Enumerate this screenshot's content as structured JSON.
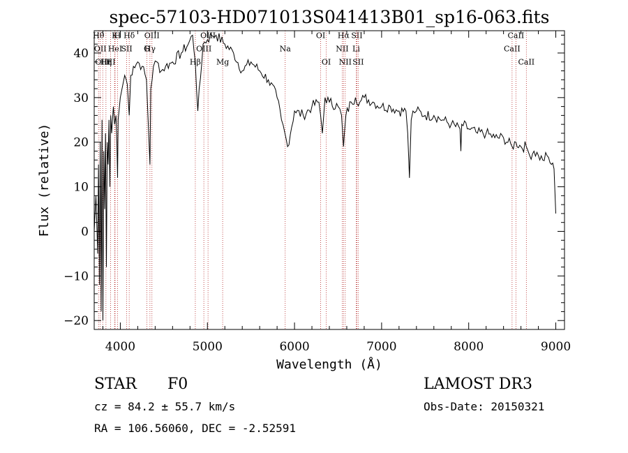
{
  "chart_data": {
    "type": "line",
    "title": "spec-57103-HD071013S041413B01_sp16-063.fits",
    "xlabel": "Wavelength (Å)",
    "ylabel": "Flux (relative)",
    "xlim": [
      3700,
      9100
    ],
    "ylim": [
      -22,
      45
    ],
    "x_ticks": [
      4000,
      5000,
      6000,
      7000,
      8000,
      9000
    ],
    "y_ticks": [
      -20,
      -10,
      0,
      10,
      20,
      30,
      40
    ],
    "grid": false,
    "line_color": "#000000",
    "marker_color": "#b22222",
    "spectrum": {
      "x": [
        3700,
        3720,
        3740,
        3750,
        3760,
        3770,
        3780,
        3790,
        3800,
        3810,
        3820,
        3830,
        3840,
        3850,
        3860,
        3870,
        3880,
        3890,
        3900,
        3910,
        3920,
        3935,
        3950,
        3960,
        3968,
        3975,
        3990,
        4000,
        4020,
        4050,
        4080,
        4102,
        4120,
        4150,
        4200,
        4250,
        4300,
        4330,
        4340,
        4350,
        4380,
        4420,
        4470,
        4520,
        4600,
        4700,
        4780,
        4830,
        4861,
        4890,
        4950,
        5000,
        5050,
        5100,
        5200,
        5300,
        5400,
        5500,
        5600,
        5700,
        5800,
        5850,
        5890,
        5920,
        6000,
        6100,
        6200,
        6280,
        6300,
        6320,
        6350,
        6400,
        6500,
        6540,
        6563,
        6590,
        6650,
        6700,
        6750,
        6800,
        6900,
        7000,
        7100,
        7200,
        7280,
        7300,
        7320,
        7340,
        7360,
        7400,
        7500,
        7600,
        7700,
        7800,
        7900,
        7910,
        7920,
        8000,
        8100,
        8200,
        8300,
        8400,
        8498,
        8542,
        8600,
        8662,
        8700,
        8750,
        8800,
        8850,
        8900,
        8950,
        8980,
        9000
      ],
      "y": [
        0,
        8,
        -5,
        15,
        -12,
        20,
        -18,
        25,
        -20,
        18,
        5,
        22,
        -8,
        20,
        15,
        25,
        10,
        26,
        22,
        25,
        28,
        24,
        26,
        20,
        12,
        25,
        28,
        30,
        32,
        35,
        33,
        26,
        35,
        37,
        38,
        37,
        34,
        20,
        15,
        32,
        37,
        38,
        36,
        37,
        38,
        40,
        42,
        44,
        38,
        27,
        42,
        43,
        44,
        44,
        42,
        40,
        36,
        38,
        36,
        34,
        30,
        25,
        22,
        19,
        27,
        26,
        28,
        29,
        26,
        22,
        30,
        29,
        28,
        26,
        19,
        26,
        29,
        30,
        29,
        30,
        29,
        28,
        28,
        27,
        27,
        22,
        12,
        25,
        27,
        27,
        26,
        26,
        25,
        24,
        23,
        18,
        24,
        23,
        22,
        22,
        21,
        21,
        19,
        20,
        19,
        19,
        17,
        18,
        17,
        16,
        17,
        15,
        14,
        4
      ]
    },
    "line_markers": [
      {
        "x": 3750,
        "y_anchor": 44,
        "label": "Hθ"
      },
      {
        "x": 3770,
        "y_anchor": 41,
        "label": "OII"
      },
      {
        "x": 3798,
        "y_anchor": 38,
        "label": "OIII"
      },
      {
        "x": 3835,
        "y_anchor": 38,
        "label": "Hη"
      },
      {
        "x": 3889,
        "y_anchor": 38,
        "label": "HI"
      },
      {
        "x": 3934,
        "y_anchor": 44,
        "label": "K"
      },
      {
        "x": 3940,
        "y_anchor": 41,
        "label": "HeI"
      },
      {
        "x": 3968,
        "y_anchor": 44,
        "label": "H"
      },
      {
        "x": 4073,
        "y_anchor": 41,
        "label": "SII"
      },
      {
        "x": 4102,
        "y_anchor": 44,
        "label": "Hδ"
      },
      {
        "x": 4304,
        "y_anchor": 41,
        "label": "G"
      },
      {
        "x": 4340,
        "y_anchor": 41,
        "label": "Hγ"
      },
      {
        "x": 4363,
        "y_anchor": 44,
        "label": "OIII"
      },
      {
        "x": 4861,
        "y_anchor": 38,
        "label": "Hβ"
      },
      {
        "x": 4959,
        "y_anchor": 41,
        "label": "OIII"
      },
      {
        "x": 5007,
        "y_anchor": 44,
        "label": "OIII"
      },
      {
        "x": 5175,
        "y_anchor": 38,
        "label": "Mg"
      },
      {
        "x": 5893,
        "y_anchor": 41,
        "label": "Na"
      },
      {
        "x": 6300,
        "y_anchor": 44,
        "label": "OI"
      },
      {
        "x": 6364,
        "y_anchor": 38,
        "label": "OI"
      },
      {
        "x": 6548,
        "y_anchor": 41,
        "label": "NII"
      },
      {
        "x": 6563,
        "y_anchor": 44,
        "label": "Hα"
      },
      {
        "x": 6583,
        "y_anchor": 38,
        "label": "NII"
      },
      {
        "x": 6708,
        "y_anchor": 41,
        "label": "Li"
      },
      {
        "x": 6716,
        "y_anchor": 44,
        "label": "SII"
      },
      {
        "x": 6731,
        "y_anchor": 38,
        "label": "SII"
      },
      {
        "x": 8498,
        "y_anchor": 41,
        "label": "CaII"
      },
      {
        "x": 8542,
        "y_anchor": 44,
        "label": "CaII"
      },
      {
        "x": 8662,
        "y_anchor": 38,
        "label": "CaII"
      }
    ]
  },
  "info": {
    "object_class": "STAR",
    "subclass": "F0",
    "redshift": "cz = 84.2 ± 55.7 km/s",
    "coords": "RA = 106.56060, DEC =  -2.52591",
    "survey": "LAMOST DR3",
    "obs_date": "Obs-Date: 20150321"
  }
}
